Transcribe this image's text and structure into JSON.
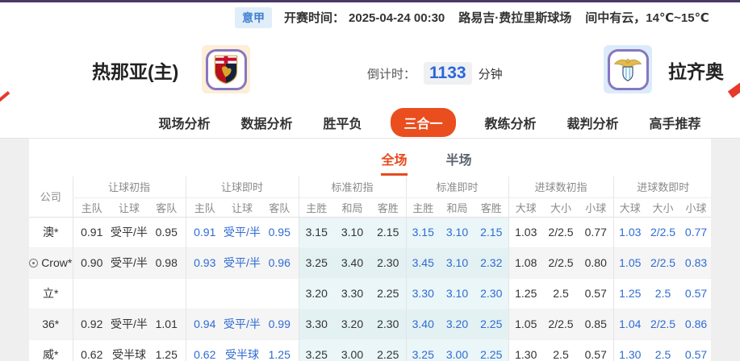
{
  "top_bar": {
    "league_badge": "意甲",
    "kickoff_label": "开赛时间：",
    "kickoff_time": "2025-04-24 00:30",
    "venue": "路易吉·费拉里斯球场",
    "weather": "间中有云，14℃~15℃"
  },
  "match_header": {
    "home_team": "热那亚(主)",
    "away_team": "拉齐奥",
    "countdown_label": "倒计时：",
    "countdown_value": "1133",
    "countdown_unit": "分钟"
  },
  "nav_tabs": [
    {
      "label": "现场分析",
      "active": false
    },
    {
      "label": "数据分析",
      "active": false
    },
    {
      "label": "胜平负",
      "active": false
    },
    {
      "label": "三合一",
      "active": true
    },
    {
      "label": "教练分析",
      "active": false
    },
    {
      "label": "裁判分析",
      "active": false
    },
    {
      "label": "高手推荐",
      "active": false
    }
  ],
  "sub_tabs": [
    {
      "label": "全场",
      "active": true
    },
    {
      "label": "半场",
      "active": false
    }
  ],
  "odds_table": {
    "company_header": "公司",
    "groups": [
      {
        "label": "让球初指",
        "key": "handicap_initial",
        "cols": [
          "主队",
          "让球",
          "客队"
        ],
        "live": false,
        "tint": false
      },
      {
        "label": "让球即时",
        "key": "handicap_live",
        "cols": [
          "主队",
          "让球",
          "客队"
        ],
        "live": true,
        "tint": false
      },
      {
        "label": "标准初指",
        "key": "std_initial",
        "cols": [
          "主胜",
          "和局",
          "客胜"
        ],
        "live": false,
        "tint": true
      },
      {
        "label": "标准即时",
        "key": "std_live",
        "cols": [
          "主胜",
          "和局",
          "客胜"
        ],
        "live": true,
        "tint": true
      },
      {
        "label": "进球数初指",
        "key": "goals_initial",
        "cols": [
          "大球",
          "大小",
          "小球"
        ],
        "live": false,
        "tint": false
      },
      {
        "label": "进球数即时",
        "key": "goals_live",
        "cols": [
          "大球",
          "大小",
          "小球"
        ],
        "live": true,
        "tint": false
      }
    ],
    "rows": [
      {
        "company": "澳*",
        "has_icon": false,
        "handicap_initial": [
          "0.91",
          "受平/半",
          "0.95"
        ],
        "handicap_live": [
          "0.91",
          "受平/半",
          "0.95"
        ],
        "std_initial": [
          "3.15",
          "3.10",
          "2.15"
        ],
        "std_live": [
          "3.15",
          "3.10",
          "2.15"
        ],
        "goals_initial": [
          "1.03",
          "2/2.5",
          "0.77"
        ],
        "goals_live": [
          "1.03",
          "2/2.5",
          "0.77"
        ]
      },
      {
        "company": "Crow*",
        "has_icon": true,
        "handicap_initial": [
          "0.90",
          "受平/半",
          "0.98"
        ],
        "handicap_live": [
          "0.93",
          "受平/半",
          "0.96"
        ],
        "std_initial": [
          "3.25",
          "3.40",
          "2.30"
        ],
        "std_live": [
          "3.45",
          "3.10",
          "2.32"
        ],
        "goals_initial": [
          "1.08",
          "2/2.5",
          "0.80"
        ],
        "goals_live": [
          "1.05",
          "2/2.5",
          "0.83"
        ]
      },
      {
        "company": "立*",
        "has_icon": false,
        "handicap_initial": [
          "",
          "",
          ""
        ],
        "handicap_live": [
          "",
          "",
          ""
        ],
        "std_initial": [
          "3.20",
          "3.30",
          "2.25"
        ],
        "std_live": [
          "3.30",
          "3.10",
          "2.30"
        ],
        "goals_initial": [
          "1.25",
          "2.5",
          "0.57"
        ],
        "goals_live": [
          "1.25",
          "2.5",
          "0.57"
        ]
      },
      {
        "company": "36*",
        "has_icon": false,
        "handicap_initial": [
          "0.92",
          "受平/半",
          "1.01"
        ],
        "handicap_live": [
          "0.94",
          "受平/半",
          "0.99"
        ],
        "std_initial": [
          "3.30",
          "3.20",
          "2.30"
        ],
        "std_live": [
          "3.40",
          "3.20",
          "2.25"
        ],
        "goals_initial": [
          "1.05",
          "2/2.5",
          "0.85"
        ],
        "goals_live": [
          "1.04",
          "2/2.5",
          "0.86"
        ]
      },
      {
        "company": "威*",
        "has_icon": false,
        "handicap_initial": [
          "0.62",
          "受半球",
          "1.25"
        ],
        "handicap_live": [
          "0.62",
          "受半球",
          "1.25"
        ],
        "std_initial": [
          "3.25",
          "3.00",
          "2.25"
        ],
        "std_live": [
          "3.25",
          "3.00",
          "2.25"
        ],
        "goals_initial": [
          "1.30",
          "2.5",
          "0.57"
        ],
        "goals_live": [
          "1.30",
          "2.5",
          "0.57"
        ]
      }
    ]
  },
  "colors": {
    "accent_orange": "#ea4e1e",
    "tab_underline": "#e8491d",
    "live_blue": "#2f6bd2",
    "tint_cyan": "#eaf6f8",
    "purple_top_bar": "#4a3766",
    "league_badge_bg": "#e0eefa",
    "league_badge_text": "#3f7dd0",
    "stripe_row": "#f5f5f5",
    "countdown_blue": "#2b66d9",
    "home_badge_bg": "#fdeed7",
    "away_badge_bg": "#dcebfa",
    "badge_border_purple": "#8677c0",
    "edge_decor_red": "#e6392c"
  }
}
